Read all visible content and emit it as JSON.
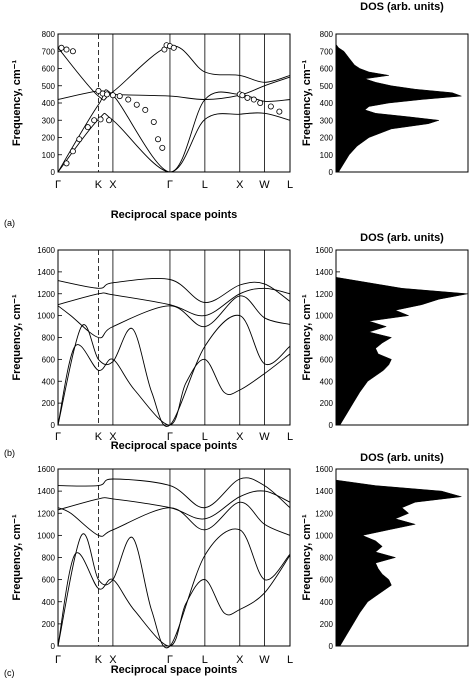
{
  "panels": [
    {
      "label": "(a)",
      "dispersion": {
        "type": "line",
        "xlabel": "Reciprocal space points",
        "ylabel": "Frequency, cm⁻¹",
        "ylim": [
          0,
          800
        ],
        "yticks": [
          0,
          100,
          200,
          300,
          400,
          500,
          600,
          700,
          800
        ],
        "kpoints": [
          "Γ",
          "K",
          "X",
          "Γ",
          "L",
          "X",
          "W",
          "L"
        ],
        "kpos": [
          0,
          0.95,
          1.29,
          2.63,
          3.45,
          4.27,
          4.85,
          5.45
        ],
        "dashed_kpoint": "K",
        "series": [
          {
            "x": [
              0,
              0.95,
              1.29,
              2.63,
              3.45,
              4.27,
              4.85,
              5.45
            ],
            "y": [
              0,
              305,
              300,
              0,
              305,
              335,
              340,
              300
            ]
          },
          {
            "x": [
              0,
              0.95,
              1.29,
              2.63,
              3.45,
              4.27,
              4.85,
              5.45
            ],
            "y": [
              0,
              390,
              445,
              0,
              420,
              450,
              410,
              420
            ]
          },
          {
            "x": [
              0,
              0.95,
              1.29,
              2.63,
              3.45,
              4.27,
              4.85,
              5.45
            ],
            "y": [
              420,
              470,
              450,
              440,
              420,
              445,
              500,
              550
            ]
          },
          {
            "x": [
              0,
              0.95,
              1.29,
              2.63,
              3.45,
              4.27,
              4.85,
              5.45
            ],
            "y": [
              720,
              440,
              465,
              730,
              580,
              560,
              520,
              560
            ]
          }
        ],
        "markers": [
          {
            "x": 0.08,
            "y": 720
          },
          {
            "x": 0.2,
            "y": 710
          },
          {
            "x": 0.35,
            "y": 700
          },
          {
            "x": 0.2,
            "y": 50
          },
          {
            "x": 0.35,
            "y": 120
          },
          {
            "x": 0.5,
            "y": 190
          },
          {
            "x": 0.7,
            "y": 260
          },
          {
            "x": 0.85,
            "y": 300
          },
          {
            "x": 1.0,
            "y": 305
          },
          {
            "x": 1.2,
            "y": 300
          },
          {
            "x": 0.95,
            "y": 470
          },
          {
            "x": 1.05,
            "y": 455
          },
          {
            "x": 1.15,
            "y": 450
          },
          {
            "x": 1.29,
            "y": 445
          },
          {
            "x": 1.45,
            "y": 440
          },
          {
            "x": 1.65,
            "y": 420
          },
          {
            "x": 1.85,
            "y": 390
          },
          {
            "x": 2.05,
            "y": 360
          },
          {
            "x": 2.25,
            "y": 290
          },
          {
            "x": 2.35,
            "y": 190
          },
          {
            "x": 2.45,
            "y": 140
          },
          {
            "x": 2.5,
            "y": 710
          },
          {
            "x": 2.55,
            "y": 735
          },
          {
            "x": 2.63,
            "y": 730
          },
          {
            "x": 2.72,
            "y": 720
          },
          {
            "x": 4.27,
            "y": 450
          },
          {
            "x": 4.33,
            "y": 445
          },
          {
            "x": 4.45,
            "y": 430
          },
          {
            "x": 4.6,
            "y": 420
          },
          {
            "x": 4.75,
            "y": 400
          },
          {
            "x": 5.0,
            "y": 380
          },
          {
            "x": 5.2,
            "y": 350
          }
        ]
      },
      "dos": {
        "type": "area",
        "title": "DOS (arb. units)",
        "ylabel": "Frequency, cm⁻¹",
        "ylim": [
          0,
          800
        ],
        "yticks": [
          0,
          100,
          200,
          300,
          400,
          500,
          600,
          700,
          800
        ],
        "xlim": [
          0,
          1
        ],
        "freq": [
          0,
          50,
          100,
          150,
          200,
          250,
          280,
          300,
          320,
          340,
          360,
          380,
          400,
          420,
          440,
          460,
          480,
          500,
          520,
          540,
          560,
          580,
          600,
          620,
          660,
          700,
          720,
          740
        ],
        "density": [
          0.02,
          0.06,
          0.1,
          0.16,
          0.25,
          0.42,
          0.7,
          0.78,
          0.55,
          0.3,
          0.22,
          0.25,
          0.4,
          0.65,
          0.95,
          0.88,
          0.6,
          0.42,
          0.3,
          0.22,
          0.4,
          0.25,
          0.18,
          0.14,
          0.1,
          0.06,
          0.02,
          0
        ]
      }
    },
    {
      "label": "(b)",
      "dispersion": {
        "type": "line",
        "xlabel": "Reciprocal space points",
        "ylabel": "Frequency, cm⁻¹",
        "ylim": [
          0,
          1600
        ],
        "yticks": [
          0,
          200,
          400,
          600,
          800,
          1000,
          1200,
          1400,
          1600
        ],
        "kpoints": [
          "Γ",
          "K",
          "X",
          "Γ",
          "L",
          "X",
          "W",
          "L"
        ],
        "kpos": [
          0,
          0.95,
          1.29,
          2.63,
          3.45,
          4.27,
          4.85,
          5.45
        ],
        "dashed_kpoint": "K",
        "series": [
          {
            "x": [
              0,
              0.4,
              0.95,
              1.29,
              1.8,
              2.63,
              3.0,
              3.45,
              3.9,
              4.27,
              4.85,
              5.45
            ],
            "y": [
              0,
              720,
              500,
              600,
              320,
              0,
              380,
              600,
              300,
              320,
              470,
              650
            ]
          },
          {
            "x": [
              0,
              0.55,
              0.95,
              1.29,
              1.75,
              2.2,
              2.63,
              3.45,
              4.27,
              4.85,
              5.45
            ],
            "y": [
              0,
              900,
              600,
              580,
              880,
              300,
              0,
              720,
              1000,
              560,
              720
            ]
          },
          {
            "x": [
              0,
              0.3,
              0.95,
              1.29,
              2.63,
              3.45,
              4.27,
              4.85,
              5.45
            ],
            "y": [
              1090,
              1000,
              800,
              900,
              1090,
              900,
              1180,
              980,
              920
            ]
          },
          {
            "x": [
              0,
              0.95,
              1.29,
              2.63,
              3.45,
              4.27,
              4.85,
              5.45
            ],
            "y": [
              1100,
              1200,
              1190,
              1100,
              1000,
              1200,
              1250,
              1200
            ]
          },
          {
            "x": [
              0,
              0.95,
              1.29,
              2.63,
              3.45,
              4.27,
              4.85,
              5.45
            ],
            "y": [
              1320,
              1250,
              1300,
              1330,
              1120,
              1280,
              1290,
              1130
            ]
          }
        ]
      },
      "dos": {
        "type": "area",
        "title": "DOS (arb. units)",
        "ylabel": "Frequency, cm⁻¹",
        "ylim": [
          0,
          1600
        ],
        "yticks": [
          0,
          200,
          400,
          600,
          800,
          1000,
          1200,
          1400,
          1600
        ],
        "xlim": [
          0,
          1
        ],
        "freq": [
          0,
          100,
          200,
          300,
          400,
          450,
          500,
          550,
          600,
          650,
          700,
          750,
          800,
          850,
          900,
          950,
          1000,
          1050,
          1100,
          1150,
          1200,
          1250,
          1300,
          1350
        ],
        "density": [
          0.03,
          0.08,
          0.13,
          0.18,
          0.24,
          0.3,
          0.36,
          0.4,
          0.42,
          0.32,
          0.3,
          0.35,
          0.42,
          0.25,
          0.38,
          0.25,
          0.55,
          0.45,
          0.65,
          0.78,
          1.0,
          0.5,
          0.25,
          0
        ]
      }
    },
    {
      "label": "(c)",
      "dispersion": {
        "type": "line",
        "xlabel": "Reciprocal space points",
        "ylabel": "Frequency, cm⁻¹",
        "ylim": [
          0,
          1600
        ],
        "yticks": [
          0,
          200,
          400,
          600,
          800,
          1000,
          1200,
          1400,
          1600
        ],
        "kpoints": [
          "Γ",
          "K",
          "X",
          "Γ",
          "L",
          "X",
          "W",
          "L"
        ],
        "kpos": [
          0,
          0.95,
          1.29,
          2.63,
          3.45,
          4.27,
          4.85,
          5.45
        ],
        "dashed_kpoint": "K",
        "series": [
          {
            "x": [
              0,
              0.4,
              0.95,
              1.29,
              1.8,
              2.63,
              3.0,
              3.45,
              3.9,
              4.27,
              4.85,
              5.45
            ],
            "y": [
              0,
              830,
              520,
              600,
              320,
              0,
              380,
              600,
              300,
              330,
              480,
              820
            ]
          },
          {
            "x": [
              0,
              0.55,
              0.95,
              1.29,
              1.75,
              2.2,
              2.63,
              3.45,
              4.27,
              4.85,
              5.45
            ],
            "y": [
              0,
              1000,
              600,
              600,
              980,
              320,
              0,
              820,
              1050,
              600,
              830
            ]
          },
          {
            "x": [
              0,
              0.3,
              0.95,
              1.29,
              2.63,
              3.45,
              4.27,
              4.85,
              5.45
            ],
            "y": [
              1250,
              1200,
              1000,
              1050,
              1250,
              1050,
              1300,
              1100,
              1000
            ]
          },
          {
            "x": [
              0,
              0.95,
              1.29,
              2.63,
              3.45,
              4.27,
              4.85,
              5.45
            ],
            "y": [
              1230,
              1330,
              1330,
              1250,
              1150,
              1350,
              1400,
              1300
            ]
          },
          {
            "x": [
              0,
              0.95,
              1.29,
              2.63,
              3.45,
              4.27,
              4.85,
              5.45
            ],
            "y": [
              1450,
              1450,
              1510,
              1450,
              1250,
              1510,
              1450,
              1250
            ]
          }
        ]
      },
      "dos": {
        "type": "area",
        "title": "DOS (arb. units)",
        "ylabel": "Frequency, cm⁻¹",
        "ylim": [
          0,
          1600
        ],
        "yticks": [
          0,
          200,
          400,
          600,
          800,
          1000,
          1200,
          1400,
          1600
        ],
        "xlim": [
          0,
          1
        ],
        "freq": [
          0,
          100,
          200,
          300,
          400,
          450,
          500,
          550,
          600,
          650,
          700,
          750,
          800,
          850,
          900,
          950,
          1000,
          1050,
          1100,
          1150,
          1200,
          1250,
          1300,
          1350,
          1400,
          1450,
          1500
        ],
        "density": [
          0.03,
          0.08,
          0.13,
          0.18,
          0.24,
          0.3,
          0.36,
          0.42,
          0.4,
          0.35,
          0.32,
          0.3,
          0.45,
          0.3,
          0.35,
          0.3,
          0.2,
          0.4,
          0.6,
          0.45,
          0.55,
          0.5,
          0.6,
          0.95,
          0.8,
          0.3,
          0
        ]
      }
    }
  ]
}
